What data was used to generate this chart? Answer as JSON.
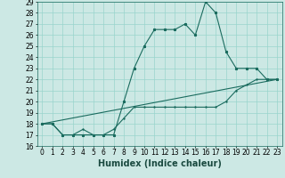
{
  "xlabel": "Humidex (Indice chaleur)",
  "bg_color": "#cce8e4",
  "grid_color": "#99d4cc",
  "line_color": "#1a6b5e",
  "xlim": [
    -0.5,
    23.5
  ],
  "ylim": [
    16,
    29
  ],
  "xticks": [
    0,
    1,
    2,
    3,
    4,
    5,
    6,
    7,
    8,
    9,
    10,
    11,
    12,
    13,
    14,
    15,
    16,
    17,
    18,
    19,
    20,
    21,
    22,
    23
  ],
  "yticks": [
    16,
    17,
    18,
    19,
    20,
    21,
    22,
    23,
    24,
    25,
    26,
    27,
    28,
    29
  ],
  "series1_x": [
    0,
    1,
    2,
    3,
    4,
    5,
    6,
    7,
    8,
    9,
    10,
    11,
    12,
    13,
    14,
    15,
    16,
    17,
    18,
    19,
    20,
    21,
    22,
    23
  ],
  "series1_y": [
    18,
    18,
    17,
    17,
    17,
    17,
    17,
    17,
    20,
    23,
    25,
    26.5,
    26.5,
    26.5,
    27,
    26,
    29,
    28,
    24.5,
    23,
    23,
    23,
    22,
    22
  ],
  "series2_x": [
    0,
    1,
    2,
    3,
    4,
    5,
    6,
    7,
    8,
    9,
    10,
    11,
    12,
    13,
    14,
    15,
    16,
    17,
    18,
    19,
    20,
    21,
    22,
    23
  ],
  "series2_y": [
    18,
    18,
    17,
    17,
    17.5,
    17,
    17,
    17.5,
    18.5,
    19.5,
    19.5,
    19.5,
    19.5,
    19.5,
    19.5,
    19.5,
    19.5,
    19.5,
    20,
    21,
    21.5,
    22,
    22,
    22
  ],
  "series3_x": [
    0,
    23
  ],
  "series3_y": [
    18,
    22
  ],
  "xlabel_fontsize": 7,
  "tick_fontsize": 5.5
}
